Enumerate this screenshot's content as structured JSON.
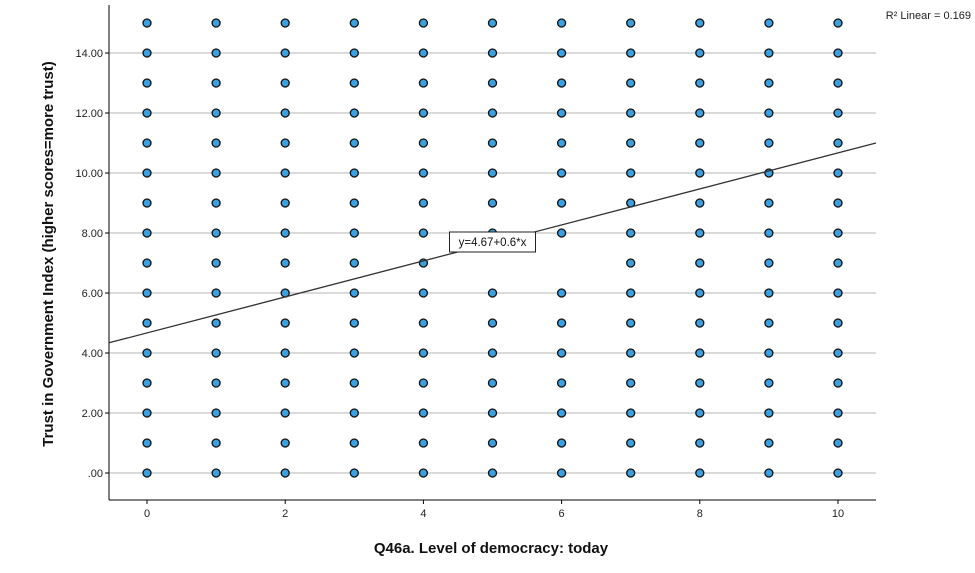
{
  "chart_data": {
    "type": "scatter",
    "xlabel": "Q46a. Level of democracy: today",
    "ylabel": "Trust in Government Index (higher scores=more trust)",
    "xlim": [
      -0.55,
      10.55
    ],
    "ylim": [
      -0.9,
      15.6
    ],
    "x_ticks": [
      0,
      2,
      4,
      6,
      8,
      10
    ],
    "x_tick_labels": [
      "0",
      "2",
      "4",
      "6",
      "8",
      "10"
    ],
    "y_ticks": [
      0,
      2,
      4,
      6,
      8,
      10,
      12,
      14
    ],
    "y_tick_labels": [
      ".00",
      "2.00",
      "4.00",
      "6.00",
      "8.00",
      "10.00",
      "12.00",
      "14.00"
    ],
    "gridlines": "horizontal",
    "marker_fill": "#3aa0e0",
    "marker_edge": "#111111",
    "points_note_x_values": [
      0,
      1,
      2,
      3,
      4,
      5,
      6,
      7,
      8,
      9,
      10
    ],
    "points_note_y_values": [
      0,
      1,
      2,
      3,
      4,
      5,
      6,
      7,
      8,
      9,
      10,
      11,
      12,
      13,
      14,
      15
    ],
    "missing_points": [
      [
        5,
        7
      ],
      [
        6,
        7
      ]
    ],
    "fit_line": {
      "intercept": 4.67,
      "slope": 0.6,
      "equation_label": "y=4.67+0.6*x",
      "label_position": [
        5.0,
        7.7
      ],
      "r2_label": "R² Linear = 0.169",
      "color": "#333333"
    }
  }
}
